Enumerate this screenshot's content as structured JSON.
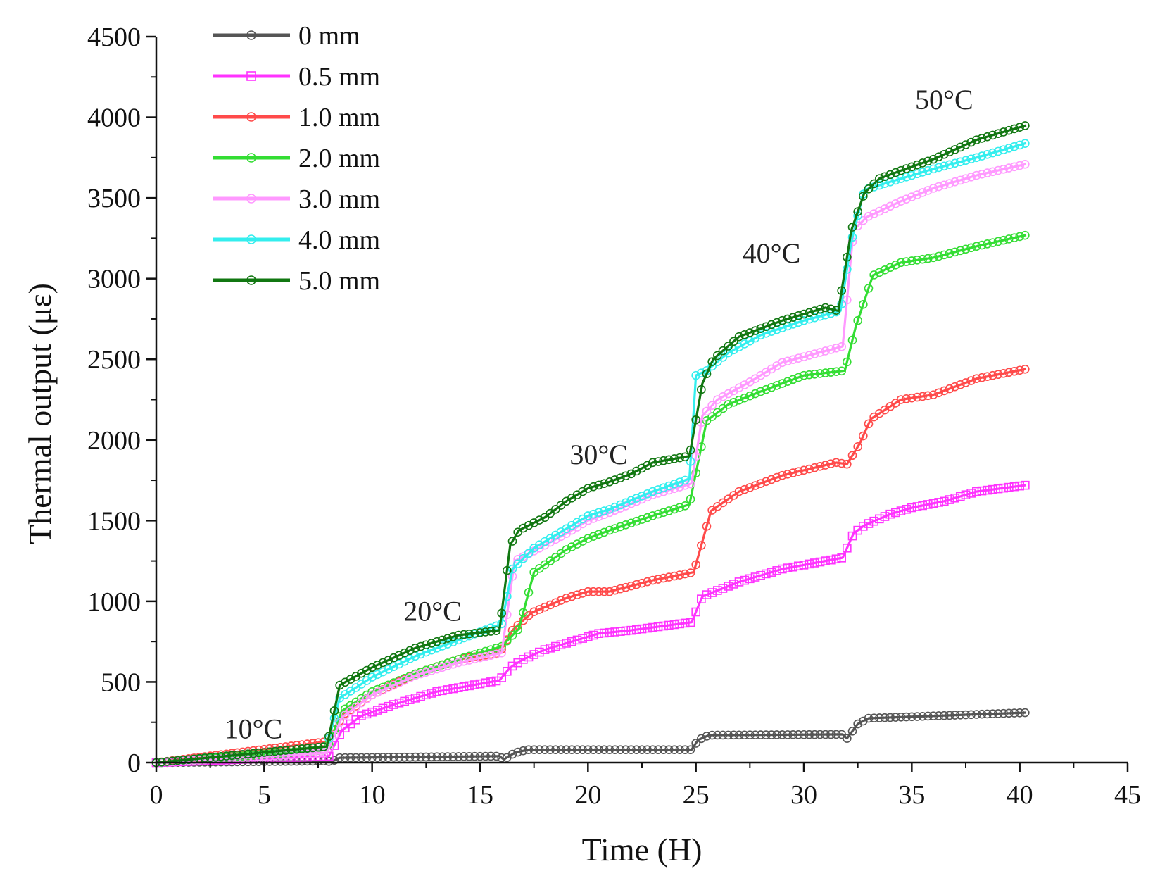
{
  "chart_data": {
    "type": "line",
    "title": "",
    "xlabel": "Time (H)",
    "ylabel": "Thermal output (με)",
    "xlim": [
      0,
      45
    ],
    "ylim": [
      0,
      4500
    ],
    "xticks": [
      0,
      5,
      10,
      15,
      20,
      25,
      30,
      35,
      40,
      45
    ],
    "yticks": [
      0,
      500,
      1000,
      1500,
      2000,
      2500,
      3000,
      3500,
      4000,
      4500
    ],
    "grid": false,
    "legend_position": "top-left",
    "annotations": [
      {
        "text": "10°C",
        "x": 4.5,
        "y": 150
      },
      {
        "text": "20°C",
        "x": 12.8,
        "y": 880
      },
      {
        "text": "30°C",
        "x": 20.5,
        "y": 1850
      },
      {
        "text": "40°C",
        "x": 28.5,
        "y": 3100
      },
      {
        "text": "50°C",
        "x": 36.5,
        "y": 4050
      }
    ],
    "series": [
      {
        "name": "0 mm",
        "color": "#555555",
        "marker": "circle",
        "x": [
          0,
          7.9,
          8.1,
          8.5,
          15.9,
          16.1,
          16.6,
          17.2,
          24.8,
          25.1,
          25.6,
          31.8,
          32.0,
          32.5,
          33.0,
          40.3
        ],
        "y": [
          0,
          10,
          5,
          30,
          40,
          20,
          60,
          80,
          80,
          140,
          170,
          175,
          150,
          240,
          275,
          310
        ]
      },
      {
        "name": "0.5 mm",
        "color": "#ff33ff",
        "marker": "square",
        "x": [
          0,
          8.0,
          8.6,
          9.5,
          11,
          13,
          15.9,
          16.4,
          17,
          18,
          19.5,
          20.5,
          22,
          24.8,
          25.3,
          27,
          29,
          31.8,
          32.3,
          32.8,
          34,
          35,
          36.5,
          38,
          40.3
        ],
        "y": [
          0,
          40,
          200,
          290,
          360,
          440,
          510,
          590,
          640,
          700,
          760,
          800,
          820,
          870,
          1030,
          1120,
          1200,
          1270,
          1420,
          1470,
          1540,
          1580,
          1620,
          1680,
          1720
        ]
      },
      {
        "name": "1.0 mm",
        "color": "#ff4a4a",
        "marker": "circle",
        "x": [
          0,
          7.9,
          8.7,
          10,
          12,
          14,
          15.9,
          16.5,
          17.4,
          19,
          20,
          21,
          23,
          24.9,
          25.7,
          27,
          29,
          31.5,
          32.0,
          32.6,
          33.1,
          34.5,
          36,
          38,
          40.3
        ],
        "y": [
          0,
          130,
          300,
          420,
          550,
          640,
          680,
          820,
          930,
          1020,
          1060,
          1060,
          1130,
          1180,
          1560,
          1680,
          1780,
          1860,
          1850,
          1980,
          2130,
          2250,
          2280,
          2380,
          2440
        ]
      },
      {
        "name": "2.0 mm",
        "color": "#33dd33",
        "marker": "circle",
        "x": [
          0,
          7.9,
          8.6,
          10,
          12,
          14,
          16.0,
          16.8,
          17.5,
          19,
          20,
          21,
          23,
          24.7,
          25.5,
          26.5,
          28,
          30,
          31.9,
          32.4,
          33.2,
          34.5,
          36,
          38,
          40.3
        ],
        "y": [
          0,
          80,
          320,
          440,
          550,
          640,
          720,
          830,
          1180,
          1320,
          1390,
          1440,
          1530,
          1600,
          2120,
          2220,
          2300,
          2400,
          2430,
          2700,
          3020,
          3100,
          3130,
          3200,
          3270
        ]
      },
      {
        "name": "3.0 mm",
        "color": "#ff99ff",
        "marker": "circle",
        "x": [
          0,
          7.9,
          8.6,
          10,
          12,
          14,
          16.0,
          16.6,
          17.2,
          19,
          20,
          21,
          23,
          24.8,
          25.3,
          26,
          27.5,
          29,
          31.8,
          32.3,
          32.9,
          34.5,
          36,
          38,
          40.3
        ],
        "y": [
          0,
          60,
          280,
          420,
          540,
          620,
          680,
          1250,
          1290,
          1420,
          1500,
          1550,
          1660,
          1730,
          2150,
          2250,
          2360,
          2480,
          2580,
          3300,
          3380,
          3480,
          3560,
          3640,
          3710
        ]
      },
      {
        "name": "4.0 mm",
        "color": "#33eeee",
        "marker": "circle",
        "x": [
          0,
          7.9,
          8.5,
          10,
          12,
          14,
          16.0,
          16.5,
          17.5,
          19,
          20,
          21,
          23,
          24.7,
          25.0,
          25.5,
          26.5,
          28,
          30,
          31.7,
          32.2,
          32.8,
          34.5,
          36,
          38,
          40.3
        ],
        "y": [
          0,
          100,
          400,
          530,
          660,
          760,
          860,
          1200,
          1330,
          1450,
          1530,
          1570,
          1680,
          1760,
          2400,
          2430,
          2540,
          2650,
          2740,
          2800,
          3230,
          3550,
          3620,
          3680,
          3750,
          3840
        ]
      },
      {
        "name": "5.0 mm",
        "color": "#117711",
        "marker": "circle",
        "x": [
          0,
          7.9,
          8.5,
          10,
          12,
          14,
          15.9,
          16.4,
          16.8,
          18,
          19,
          20,
          21,
          22,
          23,
          24.7,
          25.3,
          25.8,
          27,
          29,
          31,
          31.6,
          32.2,
          32.8,
          33.5,
          34.5,
          36,
          38,
          40.3
        ],
        "y": [
          0,
          100,
          480,
          590,
          710,
          790,
          820,
          1350,
          1440,
          1520,
          1620,
          1700,
          1740,
          1790,
          1860,
          1900,
          2350,
          2500,
          2640,
          2740,
          2820,
          2800,
          3300,
          3530,
          3620,
          3670,
          3740,
          3860,
          3950
        ]
      }
    ]
  }
}
